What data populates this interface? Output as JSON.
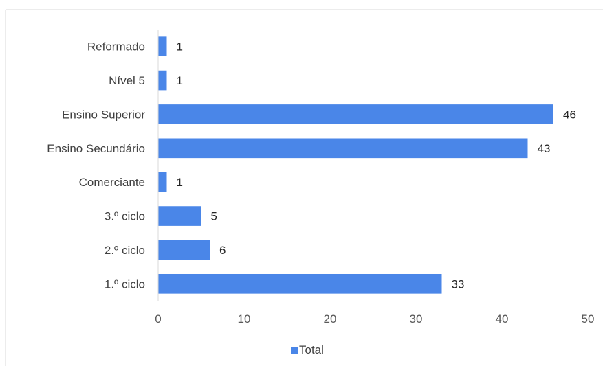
{
  "chart_data": {
    "type": "bar",
    "orientation": "horizontal",
    "categories": [
      "Reformado",
      "Nível 5",
      "Ensino Superior",
      "Ensino Secundário",
      "Comerciante",
      "3.º ciclo",
      "2.º ciclo",
      "1.º ciclo"
    ],
    "series": [
      {
        "name": "Total",
        "values": [
          1,
          1,
          46,
          43,
          1,
          5,
          6,
          33
        ],
        "color": "#4a86e8"
      }
    ],
    "xlim": [
      0,
      50
    ],
    "xticks": [
      0,
      10,
      20,
      30,
      40,
      50
    ],
    "title": "",
    "xlabel": "",
    "ylabel": "",
    "grid": false,
    "legend_position": "bottom",
    "data_labels": true
  }
}
